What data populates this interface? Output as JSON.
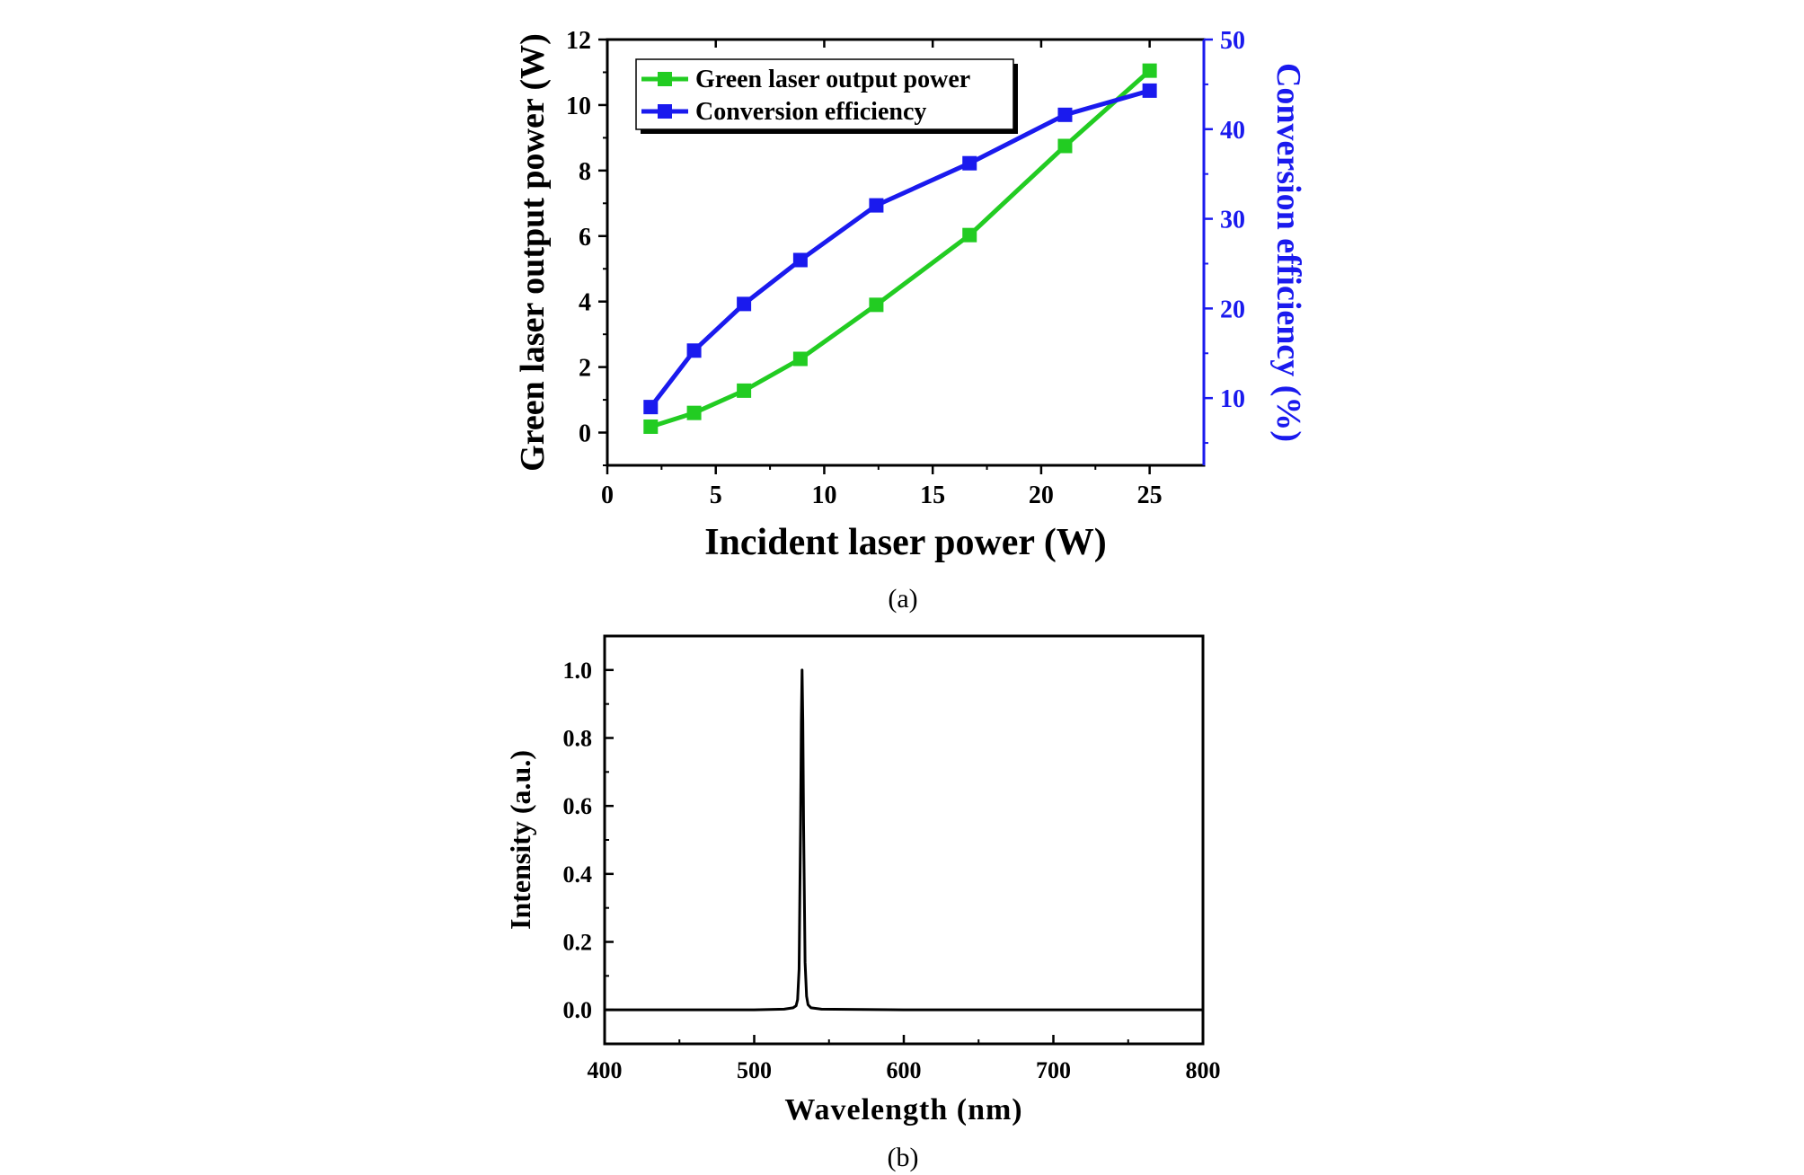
{
  "chart_data": [
    {
      "type": "line",
      "panel_label": "(a)",
      "xlabel": "Incident laser power (W)",
      "ylabel": "Green laser output power (W)",
      "y2label": "Conversion efficiency (%)",
      "xlim": [
        0,
        27.5
      ],
      "ylim": [
        -1,
        12
      ],
      "y2lim": [
        2.5,
        50
      ],
      "xticks": [
        0,
        5,
        10,
        15,
        20,
        25
      ],
      "yticks": [
        0,
        2,
        4,
        6,
        8,
        10,
        12
      ],
      "y2ticks": [
        10,
        20,
        30,
        40,
        50
      ],
      "x": [
        2,
        4,
        6.3,
        8.9,
        12.4,
        16.7,
        21.1,
        25
      ],
      "series": [
        {
          "name": "Green laser output power",
          "axis": "left",
          "color": "#22cc22",
          "values": [
            0.18,
            0.6,
            1.28,
            2.25,
            3.9,
            6.03,
            8.75,
            11.05
          ]
        },
        {
          "name": "Conversion efficiency",
          "axis": "right",
          "color": "#1a1aee",
          "values": [
            9.0,
            15.3,
            20.5,
            25.4,
            31.5,
            36.2,
            41.6,
            44.3
          ]
        }
      ],
      "legend_position": "top-left",
      "grid": false
    },
    {
      "type": "line",
      "panel_label": "(b)",
      "xlabel": "Wavelength (nm)",
      "ylabel": "Intensity (a.u.)",
      "xlim": [
        400,
        800
      ],
      "ylim": [
        -0.1,
        1.1
      ],
      "xticks": [
        400,
        500,
        600,
        700,
        800
      ],
      "yticks": [
        0.0,
        0.2,
        0.4,
        0.6,
        0.8,
        1.0
      ],
      "ytick_labels": [
        "0.0",
        "0.2",
        "0.4",
        "0.6",
        "0.8",
        "1.0"
      ],
      "peak_wavelength": 532,
      "peak_intensity": 1.0,
      "series": [
        {
          "color": "#000000",
          "x": [
            400,
            500,
            520,
            526,
            528,
            529,
            530,
            531,
            531.5,
            532,
            532.5,
            533,
            534,
            535,
            536,
            538,
            545,
            600,
            700,
            800
          ],
          "values": [
            0.0,
            0.0,
            0.002,
            0.006,
            0.012,
            0.03,
            0.12,
            0.55,
            0.85,
            1.0,
            0.85,
            0.55,
            0.14,
            0.04,
            0.015,
            0.006,
            0.002,
            0.0,
            0.0,
            0.0
          ]
        }
      ],
      "grid": false
    }
  ]
}
